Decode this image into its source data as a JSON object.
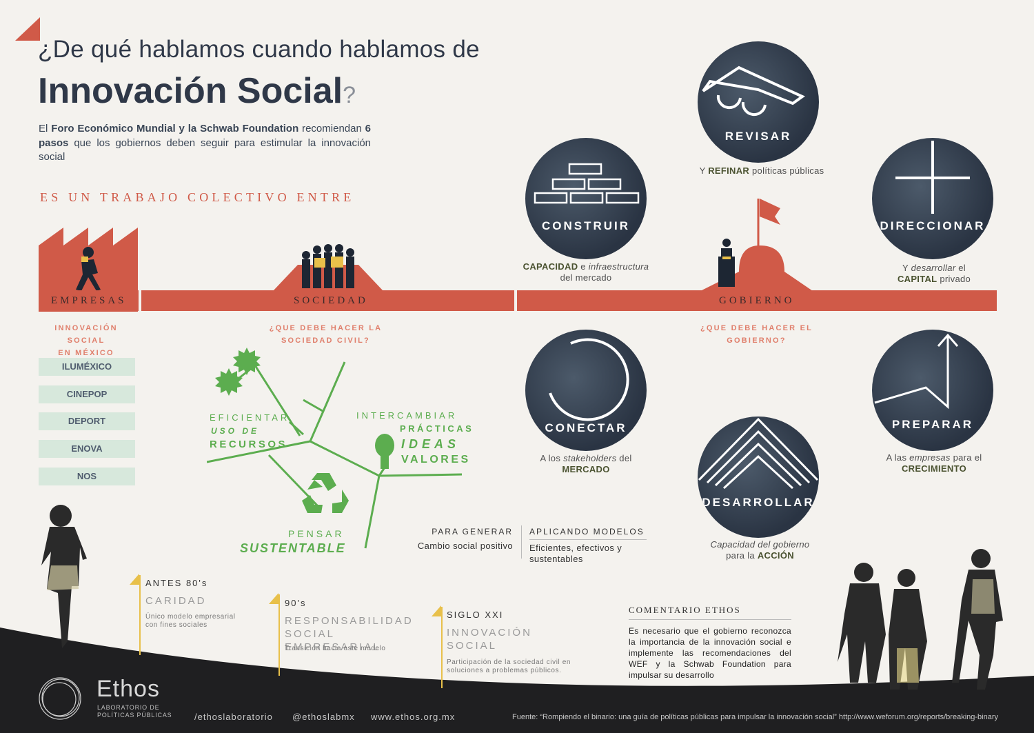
{
  "header": {
    "title_line1": "¿De qué hablamos cuando hablamos de",
    "title_line2": "Innovación Social",
    "title_q": "?",
    "intro_p1": "El ",
    "intro_b1": "Foro Económico Mundial y la Schwab Foundation",
    "intro_p2": " recomiendan ",
    "intro_b2": "6 pasos",
    "intro_p3": " que los gobiernos deben seguir para estimular la innovación social",
    "collective": "ES UN TRABAJO COLECTIVO ENTRE"
  },
  "bands": {
    "empresas": "EMPRESAS",
    "sociedad": "SOCIEDAD",
    "gobierno": "GOBIERNO"
  },
  "subtitles": {
    "innovacion_1": "INNOVACIÓN SOCIAL",
    "innovacion_2": "EN MÉXICO",
    "sociedad_1": "¿QUE DEBE HACER LA",
    "sociedad_2": "SOCIEDAD CIVIL?",
    "gobierno_1": "¿QUE DEBE HACER EL",
    "gobierno_2": "GOBIERNO?"
  },
  "orgs": [
    "ILUMÉXICO",
    "CINEPOP",
    "DEPORT",
    "ENOVA",
    "NOS"
  ],
  "society": {
    "eficientar": "EFICIENTAR",
    "uso_de": "USO DE",
    "recursos": "RECURSOS",
    "intercambiar": "INTERCAMBIAR",
    "practicas": "PRÁCTICAS",
    "ideas": "IDEAS",
    "valores": "VALORES",
    "pensar": "PENSAR",
    "sustentable": "SUSTENTABLE"
  },
  "steps": {
    "revisar": {
      "label": "REVISAR",
      "cap_a": "Y ",
      "cap_b": "REFINAR",
      "cap_c": " políticas públicas"
    },
    "construir": {
      "label": "CONSTRUIR",
      "cap_b": "CAPACIDAD",
      "cap_a": " e ",
      "cap_i": "infraestructura",
      "cap_c": "del mercado"
    },
    "direccionar": {
      "label": "DIRECCIONAR",
      "cap_a": "Y ",
      "cap_i": "desarrollar",
      "cap_c": " el",
      "cap_b": "CAPITAL",
      "cap_d": " privado"
    },
    "conectar": {
      "label": "CONECTAR",
      "cap_a": "A los ",
      "cap_i": "stakeholders",
      "cap_c": " del",
      "cap_b": "MERCADO"
    },
    "preparar": {
      "label": "PREPARAR",
      "cap_a": "A las ",
      "cap_i": "empresas",
      "cap_c": " para el",
      "cap_b": "CRECIMIENTO"
    },
    "desarrollar": {
      "label": "DESARROLLAR",
      "cap_i": "Capacidad del gobierno",
      "cap_a": "para la ",
      "cap_b": "ACCIÓN"
    }
  },
  "generar": {
    "h1": "PARA GENERAR",
    "t1": "Cambio social positivo",
    "h2": "APLICANDO MODELOS",
    "t2": "Eficientes, efectivos y sustentables"
  },
  "eras": [
    {
      "head": "ANTES 80's",
      "title": "CARIDAD",
      "desc": "Único modelo empresarial con fines sociales"
    },
    {
      "head": "90's",
      "title": "RESPONSABILIDAD SOCIAL EMPRESARIAL",
      "desc": "Transición hacia este modelo"
    },
    {
      "head": "SIGLO XXI",
      "title": "INNOVACIÓN SOCIAL",
      "desc": "Participación de la sociedad civil en soluciones a problemas públicos."
    }
  ],
  "comentario": {
    "head": "COMENTARIO ETHOS",
    "text": "Es necesario que el gobierno reconozca la importancia de la innovación social e implemente las recomendaciones del WEF y la Schwab Foundation para impulsar su desarrollo"
  },
  "footer": {
    "brand": "Ethos",
    "brand_sub1": "LABORATORIO DE",
    "brand_sub2": "POLÍTICAS PÚBLICAS",
    "facebook": "/ethoslaboratorio",
    "twitter": "@ethoslabmx",
    "web": "www.ethos.org.mx",
    "source": "Fuente: “Rompiendo el binario: una guía de políticas públicas para impulsar la innovación social” http://www.weforum.org/reports/breaking-binary"
  },
  "colors": {
    "accent_red": "#d05a48",
    "navy": "#2f3848",
    "green": "#5cad4f",
    "yellow": "#e8c04a"
  }
}
